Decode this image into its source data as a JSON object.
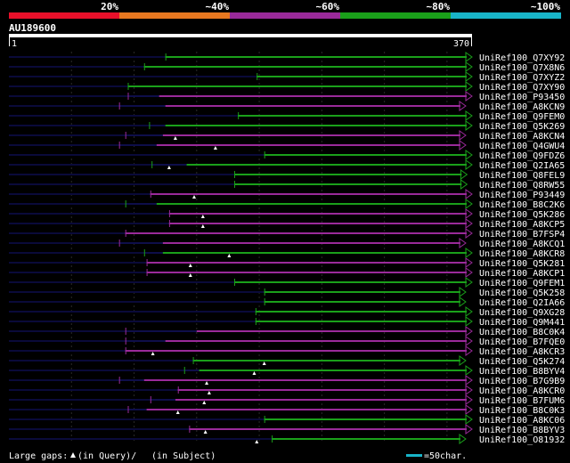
{
  "legend": {
    "scale_labels": [
      "20%",
      "~40%",
      "~60%",
      "~80%",
      "~100%"
    ],
    "colors": [
      "#e8102a",
      "#e87820",
      "#9a2a9a",
      "#1aa01a",
      "#18b4c8"
    ]
  },
  "query": {
    "id": "AU189600",
    "start_label": "1",
    "end_label": "370",
    "length": 370
  },
  "hits": [
    {
      "name": "UniRef100_Q7XY92",
      "color": "green",
      "start": 125,
      "end": 370,
      "segs": []
    },
    {
      "name": "UniRef100_Q7X8N6",
      "color": "green",
      "start": 108,
      "end": 370,
      "segs": []
    },
    {
      "name": "UniRef100_Q7XYZ2",
      "color": "green",
      "start": 198,
      "end": 370,
      "segs": []
    },
    {
      "name": "UniRef100_Q7XY90",
      "color": "green",
      "start": 95,
      "end": 370,
      "segs": []
    },
    {
      "name": "UniRef100_P93450",
      "color": "purple",
      "start": 95,
      "end": 370,
      "segs": [
        [
          95,
          120
        ]
      ]
    },
    {
      "name": "UniRef100_A8KCN9",
      "color": "purple",
      "start": 88,
      "end": 365,
      "segs": [
        [
          88,
          125
        ]
      ]
    },
    {
      "name": "UniRef100_Q9FEM0",
      "color": "green",
      "start": 183,
      "end": 370,
      "segs": []
    },
    {
      "name": "UniRef100_Q5K269",
      "color": "green",
      "start": 112,
      "end": 370,
      "segs": [
        [
          112,
          125
        ]
      ]
    },
    {
      "name": "UniRef100_A8KCN4",
      "color": "purple",
      "start": 93,
      "end": 365,
      "segs": [
        [
          93,
          123
        ]
      ],
      "gap": 133
    },
    {
      "name": "UniRef100_Q4GWU4",
      "color": "purple",
      "start": 88,
      "end": 365,
      "segs": [
        [
          88,
          118
        ]
      ],
      "gap": 165
    },
    {
      "name": "UniRef100_Q9FDZ6",
      "color": "green",
      "start": 204,
      "end": 370,
      "segs": []
    },
    {
      "name": "UniRef100_Q2IA65",
      "color": "green",
      "start": 114,
      "end": 370,
      "segs": [
        [
          114,
          142
        ]
      ],
      "gap": 128
    },
    {
      "name": "UniRef100_Q8FEL9",
      "color": "green",
      "start": 180,
      "end": 366,
      "segs": []
    },
    {
      "name": "UniRef100_Q8RW55",
      "color": "green",
      "start": 180,
      "end": 366,
      "segs": []
    },
    {
      "name": "UniRef100_P93449",
      "color": "purple",
      "start": 113,
      "end": 370,
      "segs": [],
      "gap": 148
    },
    {
      "name": "UniRef100_B8C2K6",
      "color": "green",
      "start": 93,
      "end": 370,
      "segs": [
        [
          93,
          118
        ]
      ]
    },
    {
      "name": "UniRef100_Q5K286",
      "color": "purple",
      "start": 128,
      "end": 370,
      "segs": [],
      "gap": 155
    },
    {
      "name": "UniRef100_A8KCP5",
      "color": "purple",
      "start": 128,
      "end": 370,
      "segs": [],
      "gap": 155
    },
    {
      "name": "UniRef100_B7FSP4",
      "color": "purple",
      "start": 93,
      "end": 370,
      "segs": []
    },
    {
      "name": "UniRef100_A8KCQ1",
      "color": "purple",
      "start": 88,
      "end": 365,
      "segs": [
        [
          88,
          123
        ]
      ]
    },
    {
      "name": "UniRef100_A8KCR8",
      "color": "green",
      "start": 108,
      "end": 370,
      "segs": [
        [
          108,
          123
        ]
      ],
      "gap": 176
    },
    {
      "name": "UniRef100_Q5K281",
      "color": "purple",
      "start": 110,
      "end": 370,
      "segs": [],
      "gap": 145
    },
    {
      "name": "UniRef100_A8KCP1",
      "color": "purple",
      "start": 110,
      "end": 370,
      "segs": [],
      "gap": 145
    },
    {
      "name": "UniRef100_Q9FEM1",
      "color": "green",
      "start": 180,
      "end": 370,
      "segs": []
    },
    {
      "name": "UniRef100_Q5K258",
      "color": "green",
      "start": 204,
      "end": 365,
      "segs": []
    },
    {
      "name": "UniRef100_Q2IA66",
      "color": "green",
      "start": 204,
      "end": 365,
      "segs": []
    },
    {
      "name": "UniRef100_Q9XG28",
      "color": "green",
      "start": 197,
      "end": 370,
      "segs": []
    },
    {
      "name": "UniRef100_Q9M441",
      "color": "green",
      "start": 197,
      "end": 370,
      "segs": []
    },
    {
      "name": "UniRef100_B8C0K4",
      "color": "purple",
      "start": 93,
      "end": 370,
      "segs": [
        [
          93,
          150
        ]
      ]
    },
    {
      "name": "UniRef100_B7FQE0",
      "color": "purple",
      "start": 93,
      "end": 370,
      "segs": [
        [
          93,
          125
        ]
      ]
    },
    {
      "name": "UniRef100_A8KCR3",
      "color": "purple",
      "start": 93,
      "end": 370,
      "segs": [],
      "gap": 115
    },
    {
      "name": "UniRef100_Q5K274",
      "color": "green",
      "start": 147,
      "end": 365,
      "segs": [],
      "gap": 204
    },
    {
      "name": "UniRef100_B8BYV4",
      "color": "green",
      "start": 140,
      "end": 370,
      "segs": [
        [
          140,
          152
        ]
      ],
      "gap": 196
    },
    {
      "name": "UniRef100_B7G9B9",
      "color": "purple",
      "start": 88,
      "end": 370,
      "segs": [
        [
          88,
          108
        ]
      ],
      "gap": 158
    },
    {
      "name": "UniRef100_A8KCR0",
      "color": "purple",
      "start": 135,
      "end": 370,
      "segs": [],
      "gap": 160
    },
    {
      "name": "UniRef100_B7FUM6",
      "color": "purple",
      "start": 113,
      "end": 370,
      "segs": [
        [
          113,
          133
        ]
      ],
      "gap": 156
    },
    {
      "name": "UniRef100_B8C0K3",
      "color": "purple",
      "start": 95,
      "end": 370,
      "segs": [
        [
          95,
          110
        ]
      ],
      "gap": 135
    },
    {
      "name": "UniRef100_A8KC06",
      "color": "green",
      "start": 204,
      "end": 370,
      "segs": []
    },
    {
      "name": "UniRef100_B8BYV3",
      "color": "purple",
      "start": 144,
      "end": 370,
      "segs": [],
      "gap": 157
    },
    {
      "name": "UniRef100_O81932",
      "color": "green",
      "start": 210,
      "end": 365,
      "segs": [],
      "gap": 198
    }
  ],
  "footer": {
    "large_gaps_label": "Large gaps:",
    "query_gap_label": "(in Query)/",
    "subject_gap_label": "(in Subject)",
    "scale_label": "=50char."
  }
}
